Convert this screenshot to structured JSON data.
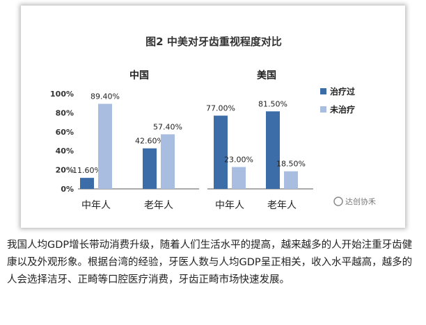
{
  "chart_data": {
    "type": "bar",
    "title": "图2  中美对牙齿重视程度对比",
    "ylim": [
      0,
      100
    ],
    "y_ticks": [
      "0%",
      "20%",
      "40%",
      "60%",
      "80%",
      "100%"
    ],
    "grid": false,
    "legend_position": "right",
    "panels": [
      {
        "name": "中国",
        "categories": [
          "中年人",
          "老年人"
        ],
        "series": [
          {
            "name": "治疗过",
            "values": [
              11.6,
              42.6
            ],
            "labels": [
              "11.60%",
              "42.60%"
            ]
          },
          {
            "name": "未治疗",
            "values": [
              89.4,
              57.4
            ],
            "labels": [
              "89.40%",
              "57.40%"
            ]
          }
        ]
      },
      {
        "name": "美国",
        "categories": [
          "中年人",
          "老年人"
        ],
        "series": [
          {
            "name": "治疗过",
            "values": [
              77.0,
              81.5
            ],
            "labels": [
              "77.00%",
              "81.50%"
            ]
          },
          {
            "name": "未治疗",
            "values": [
              23.0,
              18.5
            ],
            "labels": [
              "23.00%",
              "18.50%"
            ]
          }
        ]
      }
    ],
    "legend": [
      "治疗过",
      "未治疗"
    ],
    "colors": {
      "treated": "#3c6da8",
      "untreated": "#a9bde0",
      "text": "#222222"
    }
  },
  "watermark": "达创协禾",
  "caption": "我国人均GDP增长带动消费升级，随着人们生活水平的提高，越来越多的人开始注重牙齿健康以及外观形象。根据台湾的经验，牙医人数与人均GDP呈正相关，收入水平越高，越多的人会选择洁牙、正畸等口腔医疗消费，牙齿正畸市场快速发展。"
}
